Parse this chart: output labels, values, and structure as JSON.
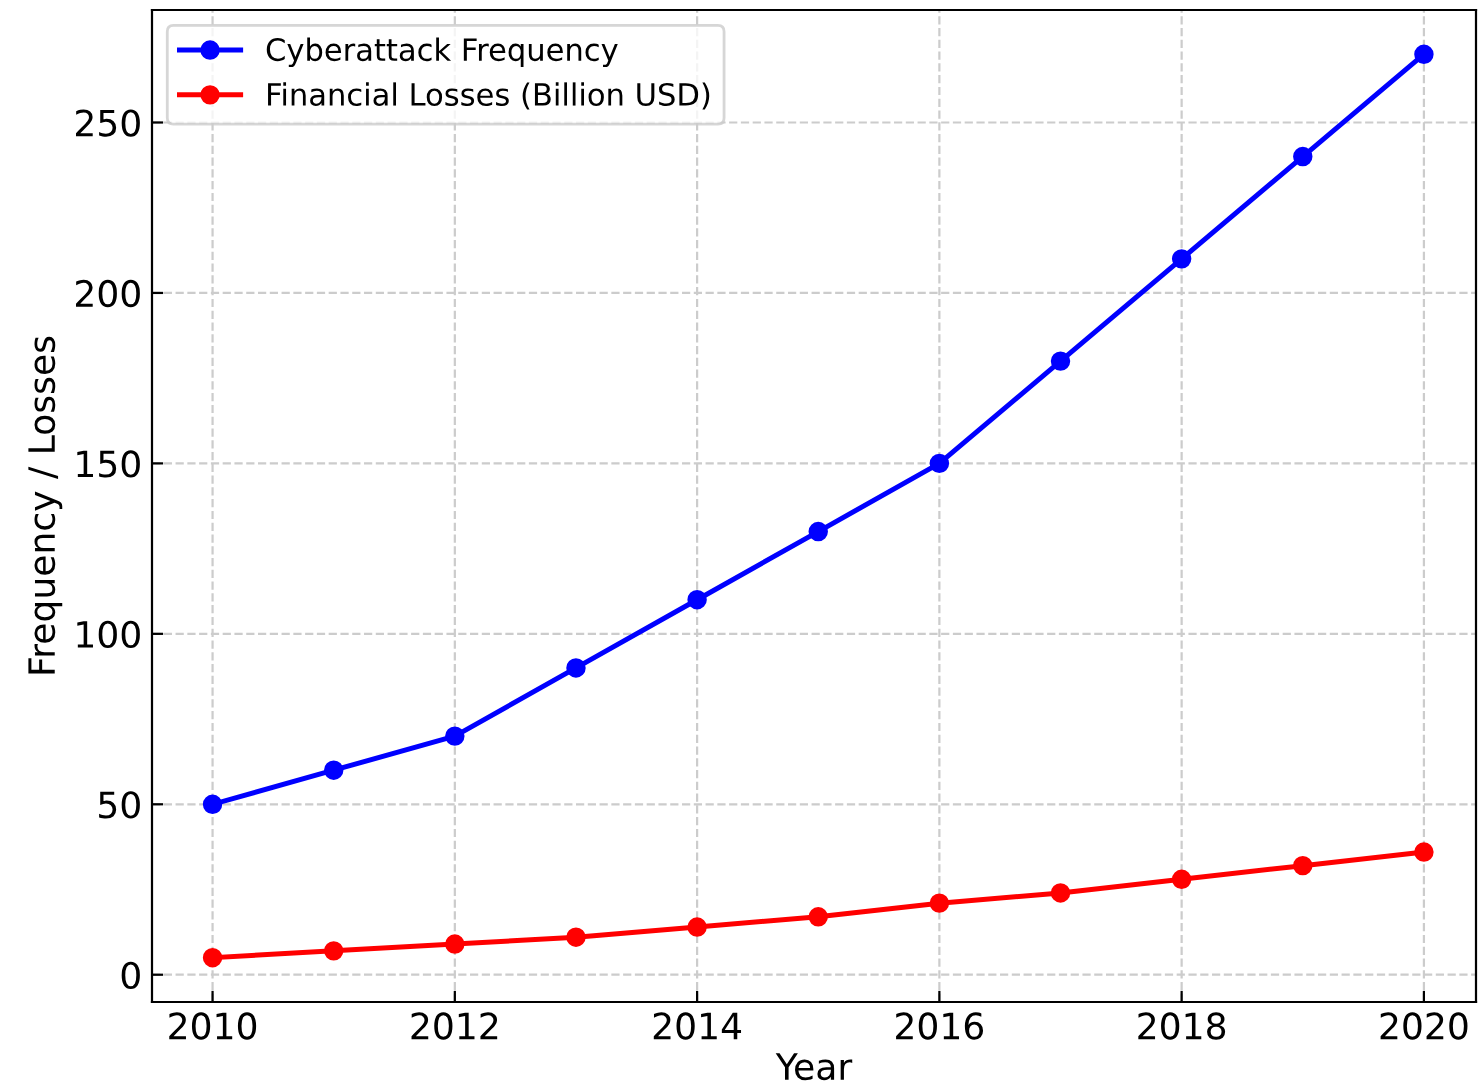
{
  "chart_data": {
    "type": "line",
    "xlabel": "Year",
    "ylabel": "Frequency / Losses",
    "x": [
      2010,
      2011,
      2012,
      2013,
      2014,
      2015,
      2016,
      2017,
      2018,
      2019,
      2020
    ],
    "series": [
      {
        "name": "Cyberattack Frequency",
        "color": "#0000ff",
        "values": [
          50,
          60,
          70,
          90,
          110,
          130,
          150,
          180,
          210,
          240,
          270
        ]
      },
      {
        "name": "Financial Losses (Billion USD)",
        "color": "#ff0000",
        "values": [
          5,
          7,
          9,
          11,
          14,
          17,
          21,
          24,
          28,
          32,
          36
        ]
      }
    ],
    "xlim": [
      2009.5,
      2020.43
    ],
    "ylim": [
      -8,
      283
    ],
    "xticks": [
      2010,
      2012,
      2014,
      2016,
      2018,
      2020
    ],
    "yticks": [
      0,
      50,
      100,
      150,
      200,
      250
    ],
    "grid": true,
    "legend": "top left",
    "marker": "circle",
    "line_style": "solid"
  }
}
